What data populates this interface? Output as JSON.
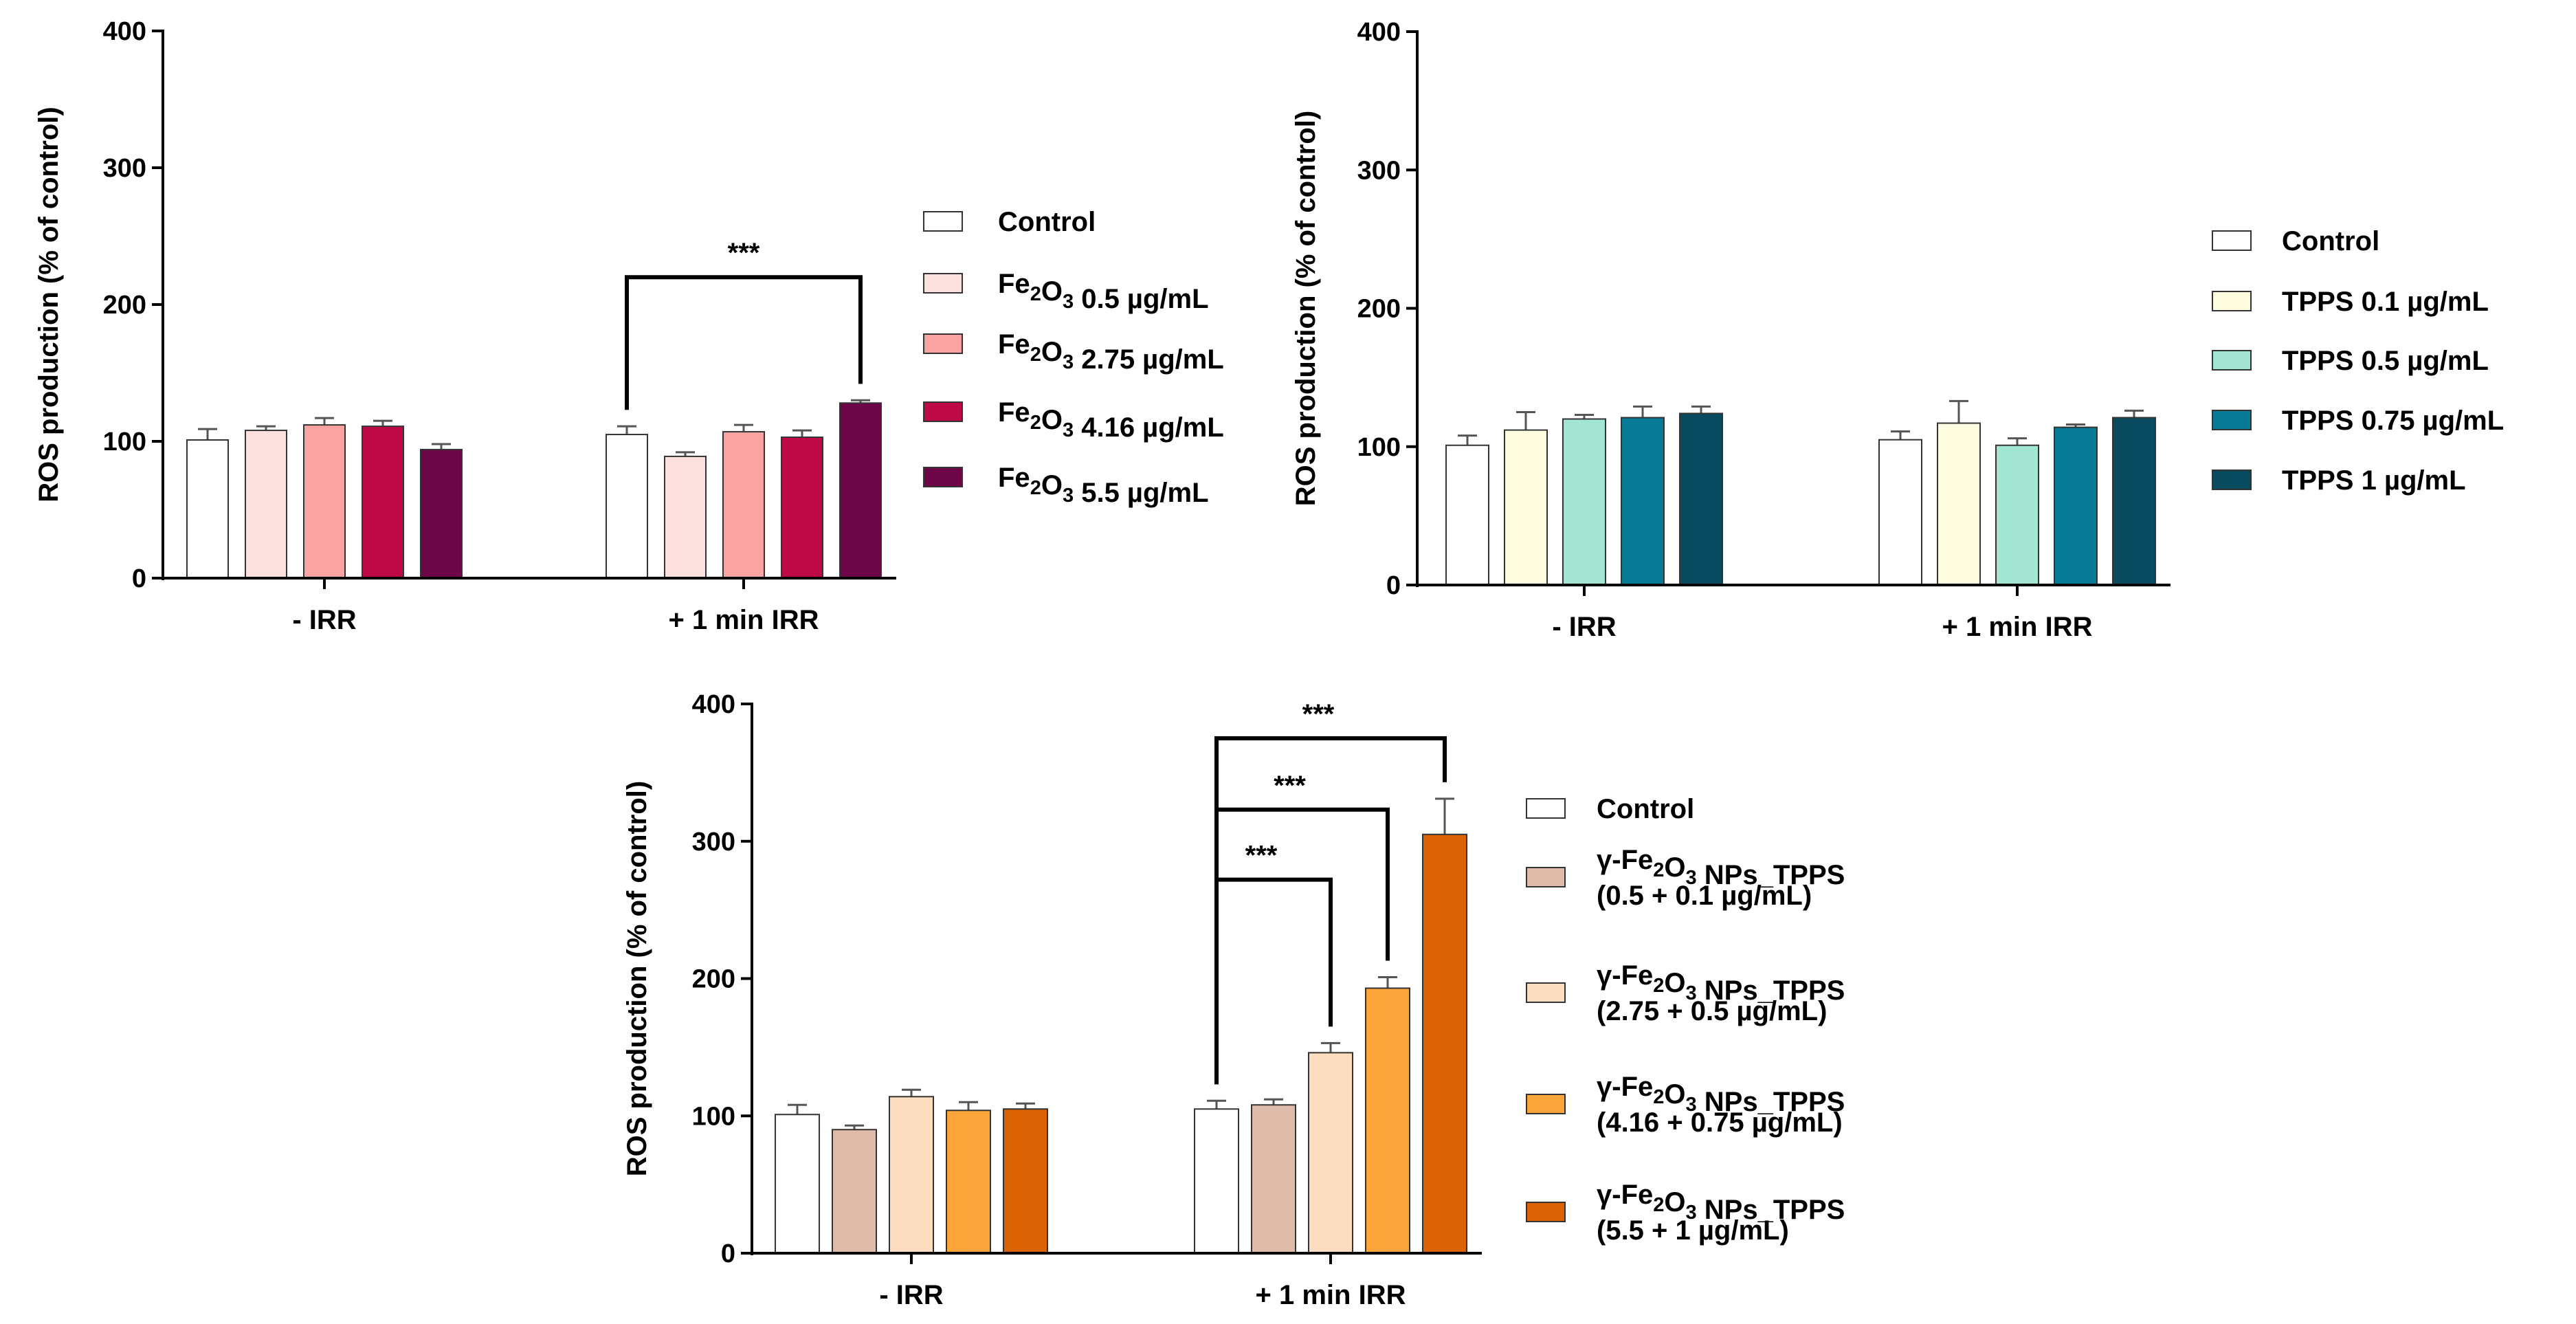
{
  "chart_data": [
    {
      "id": "fe2o3",
      "type": "bar",
      "ylabel": "ROS production (% of control)",
      "ylim": [
        0,
        400
      ],
      "yticks": [
        0,
        100,
        200,
        300,
        400
      ],
      "categories": [
        "- IRR",
        "+ 1 min IRR"
      ],
      "series": [
        {
          "name": "Control",
          "legend": [
            "Control"
          ],
          "color": "#ffffff",
          "values": [
            101,
            105
          ],
          "errors": [
            8,
            6
          ]
        },
        {
          "name": "Fe2O3 0.5 µg/mL",
          "legend": [
            "Fe₂O₃ 0.5 µg/mL"
          ],
          "color": "#fde1df",
          "values": [
            108,
            89
          ],
          "errors": [
            3,
            3
          ]
        },
        {
          "name": "Fe2O3 2.75 µg/mL",
          "legend": [
            "Fe₂O₃ 2.75 µg/mL"
          ],
          "color": "#f9a3a2",
          "values": [
            112,
            107
          ],
          "errors": [
            5,
            5
          ]
        },
        {
          "name": "Fe2O3 4.16 µg/mL",
          "legend": [
            "Fe₂O₃ 4.16 µg/mL"
          ],
          "color": "#bd0a47",
          "values": [
            111,
            103
          ],
          "errors": [
            4,
            5
          ]
        },
        {
          "name": "Fe2O3 5.5 µg/mL",
          "legend": [
            "Fe₂O₃ 5.5 µg/mL"
          ],
          "color": "#6d0549",
          "values": [
            94,
            128
          ],
          "errors": [
            4,
            2
          ]
        }
      ],
      "annotations": [
        {
          "label": "***",
          "category": 1,
          "from_series": 0,
          "to_series": 4
        }
      ]
    },
    {
      "id": "tpps",
      "type": "bar",
      "ylabel": "ROS production (% of control)",
      "ylim": [
        0,
        400
      ],
      "yticks": [
        0,
        100,
        200,
        300,
        400
      ],
      "categories": [
        "- IRR",
        "+ 1 min IRR"
      ],
      "series": [
        {
          "name": "Control",
          "legend": [
            "Control"
          ],
          "color": "#ffffff",
          "values": [
            101,
            105
          ],
          "errors": [
            7,
            6
          ]
        },
        {
          "name": "TPPS 0.1 µg/mL",
          "legend": [
            "TPPS 0.1 µg/mL"
          ],
          "color": "#fefde0",
          "values": [
            112,
            117
          ],
          "errors": [
            13,
            16
          ]
        },
        {
          "name": "TPPS 0.5 µg/mL",
          "legend": [
            "TPPS 0.5 µg/mL"
          ],
          "color": "#a3e5d3",
          "values": [
            120,
            101
          ],
          "errors": [
            3,
            5
          ]
        },
        {
          "name": "TPPS 0.75 µg/mL",
          "legend": [
            "TPPS 0.75 µg/mL"
          ],
          "color": "#097a96",
          "values": [
            121,
            114
          ],
          "errors": [
            8,
            2
          ]
        },
        {
          "name": "TPPS 1 µg/mL",
          "legend": [
            "TPPS 1 µg/mL"
          ],
          "color": "#084b5f",
          "values": [
            124,
            121
          ],
          "errors": [
            5,
            5
          ]
        }
      ],
      "annotations": []
    },
    {
      "id": "combo",
      "type": "bar",
      "ylabel": "ROS production (% of control)",
      "ylim": [
        0,
        400
      ],
      "yticks": [
        0,
        100,
        200,
        300,
        400
      ],
      "categories": [
        "- IRR",
        "+ 1 min IRR"
      ],
      "series": [
        {
          "name": "Control",
          "legend": [
            "Control"
          ],
          "color": "#ffffff",
          "values": [
            101,
            105
          ],
          "errors": [
            7,
            6
          ]
        },
        {
          "name": "γ-Fe2O3 NPs_TPPS (0.5 + 0.1 µg/mL)",
          "legend": [
            "γ-Fe₂O₃ NPs_TPPS",
            "(0.5 + 0.1 µg/mL)"
          ],
          "color": "#dfbca9",
          "values": [
            90,
            108
          ],
          "errors": [
            3,
            4
          ]
        },
        {
          "name": "γ-Fe2O3 NPs_TPPS (2.75 + 0.5 µg/mL)",
          "legend": [
            "γ-Fe₂O₃ NPs_TPPS",
            "(2.75 + 0.5 µg/mL)"
          ],
          "color": "#fdddc0",
          "values": [
            114,
            146
          ],
          "errors": [
            5,
            7
          ]
        },
        {
          "name": "γ-Fe2O3 NPs_TPPS (4.16 + 0.75 µg/mL)",
          "legend": [
            "γ-Fe₂O₃ NPs_TPPS",
            "(4.16 + 0.75 µg/mL)"
          ],
          "color": "#fba53a",
          "values": [
            104,
            193
          ],
          "errors": [
            6,
            8
          ]
        },
        {
          "name": "γ-Fe2O3 NPs_TPPS (5.5 + 1 µg/mL)",
          "legend": [
            "γ-Fe₂O₃ NPs_TPPS",
            "(5.5 + 1 µg/mL)"
          ],
          "color": "#dc6206",
          "values": [
            105,
            305
          ],
          "errors": [
            4,
            26
          ]
        }
      ],
      "annotations": [
        {
          "label": "***",
          "category": 1,
          "from_series": 0,
          "to_series": 2
        },
        {
          "label": "***",
          "category": 1,
          "from_series": 0,
          "to_series": 3
        },
        {
          "label": "***",
          "category": 1,
          "from_series": 0,
          "to_series": 4
        }
      ]
    }
  ]
}
